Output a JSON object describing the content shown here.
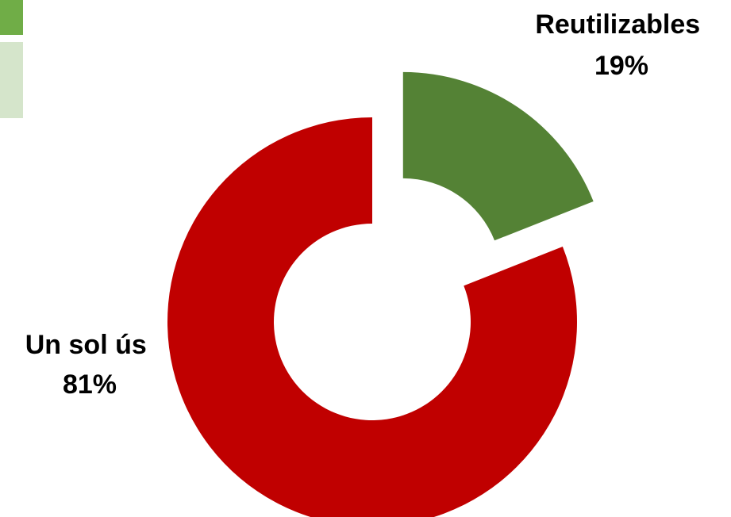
{
  "legend_swatches": [
    {
      "color": "#70AD47"
    },
    {
      "color": "#D5E5CB"
    }
  ],
  "chart_data": {
    "type": "pie",
    "variant": "donut",
    "exploded": true,
    "categories": [
      "Un sol ús",
      "Reutilizables"
    ],
    "values": [
      81,
      19
    ],
    "value_labels": [
      "81%",
      "19%"
    ],
    "colors": [
      "#C00000",
      "#548235"
    ],
    "title": "",
    "legend": "none"
  }
}
